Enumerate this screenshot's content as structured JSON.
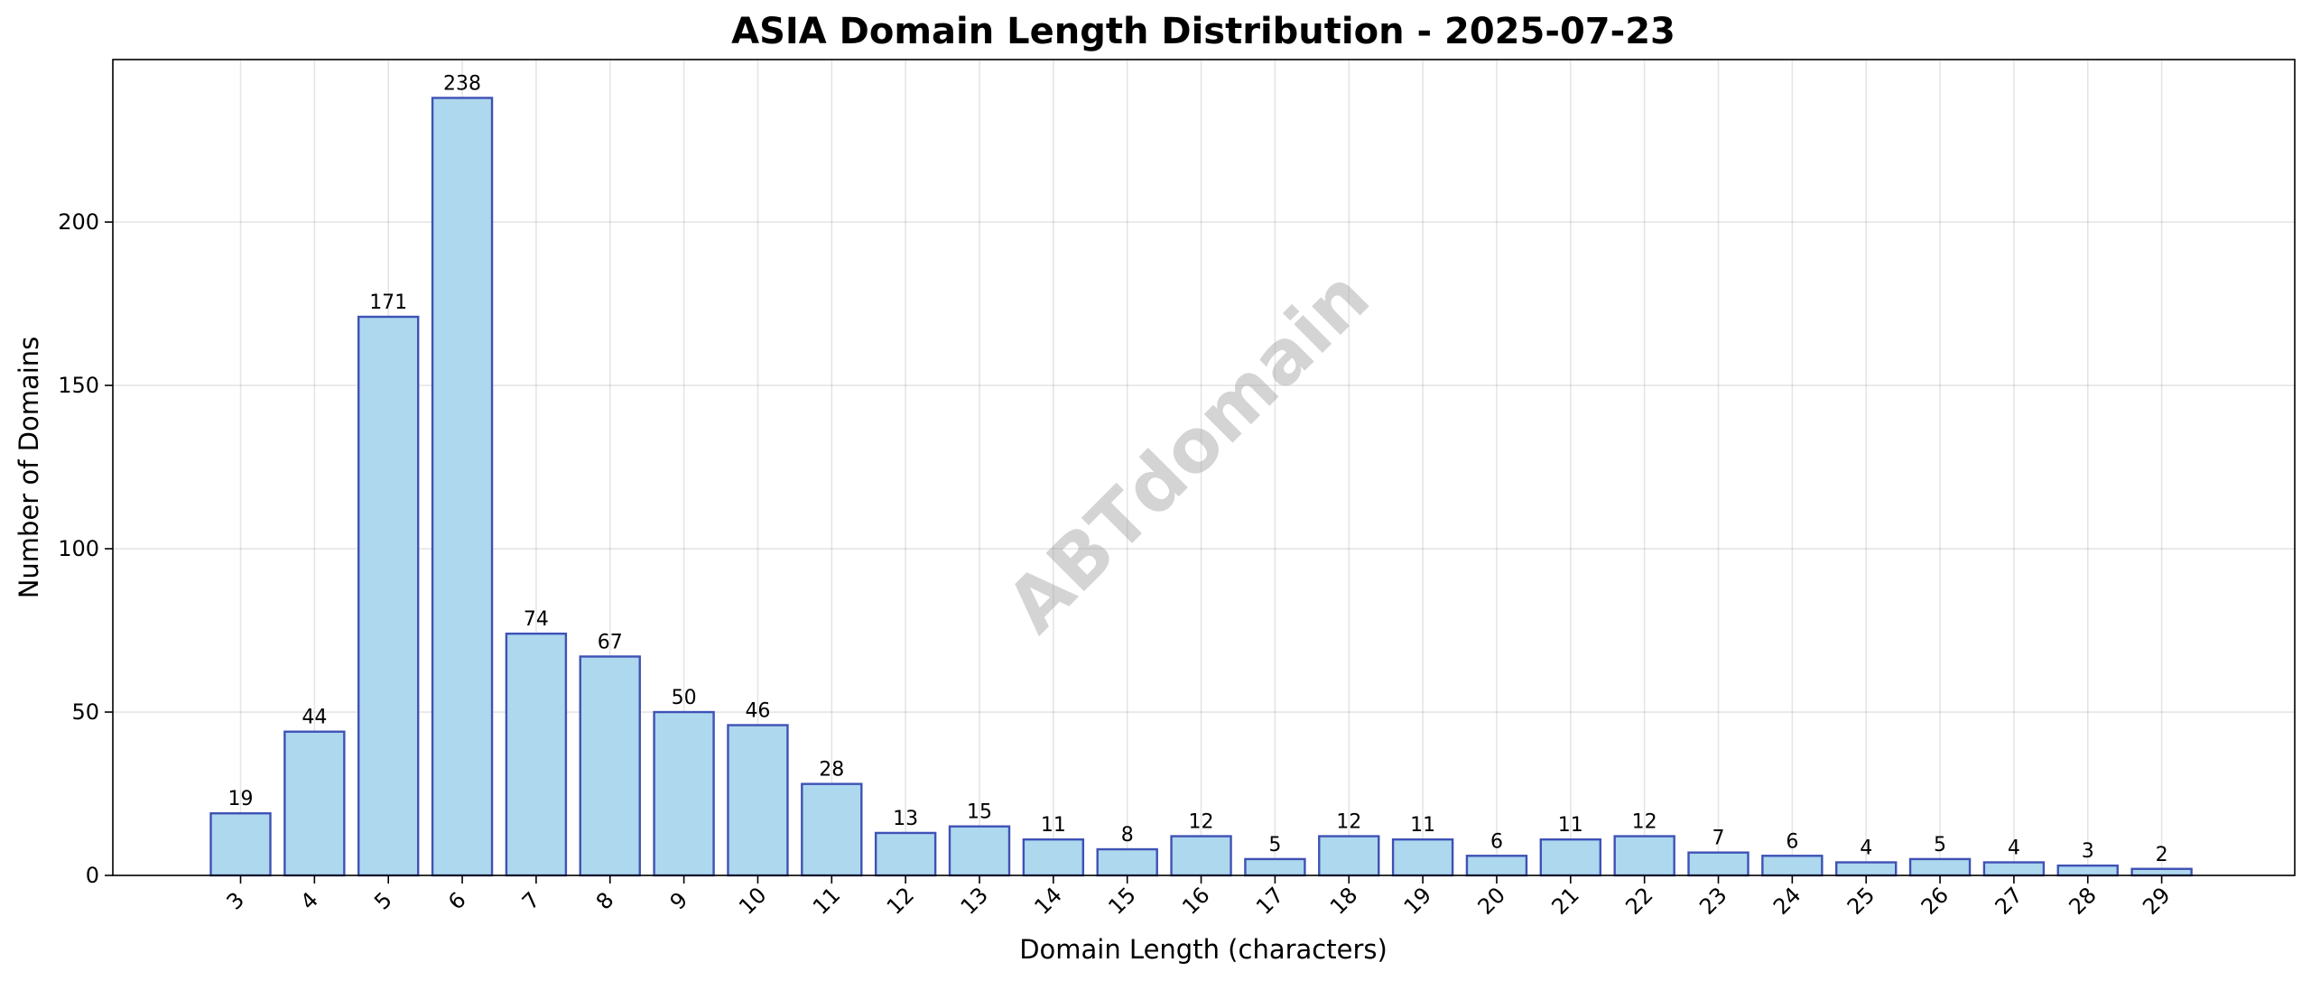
{
  "chart_data": {
    "type": "bar",
    "title": "ASIA Domain Length Distribution - 2025-07-23",
    "xlabel": "Domain Length (characters)",
    "ylabel": "Number of Domains",
    "categories": [
      "3",
      "4",
      "5",
      "6",
      "7",
      "8",
      "9",
      "10",
      "11",
      "12",
      "13",
      "14",
      "15",
      "16",
      "17",
      "18",
      "19",
      "20",
      "21",
      "22",
      "23",
      "24",
      "25",
      "26",
      "27",
      "28",
      "29"
    ],
    "values": [
      19,
      44,
      171,
      238,
      74,
      67,
      50,
      46,
      28,
      13,
      15,
      11,
      8,
      12,
      5,
      12,
      11,
      6,
      11,
      12,
      7,
      6,
      4,
      5,
      4,
      3,
      2
    ],
    "yticks": [
      0,
      50,
      100,
      150,
      200
    ],
    "ylim": [
      0,
      250
    ],
    "grid": true,
    "bar_color": "#add8ee",
    "bar_edge_color": "#3f51b5",
    "watermark": "ABTdomain"
  }
}
